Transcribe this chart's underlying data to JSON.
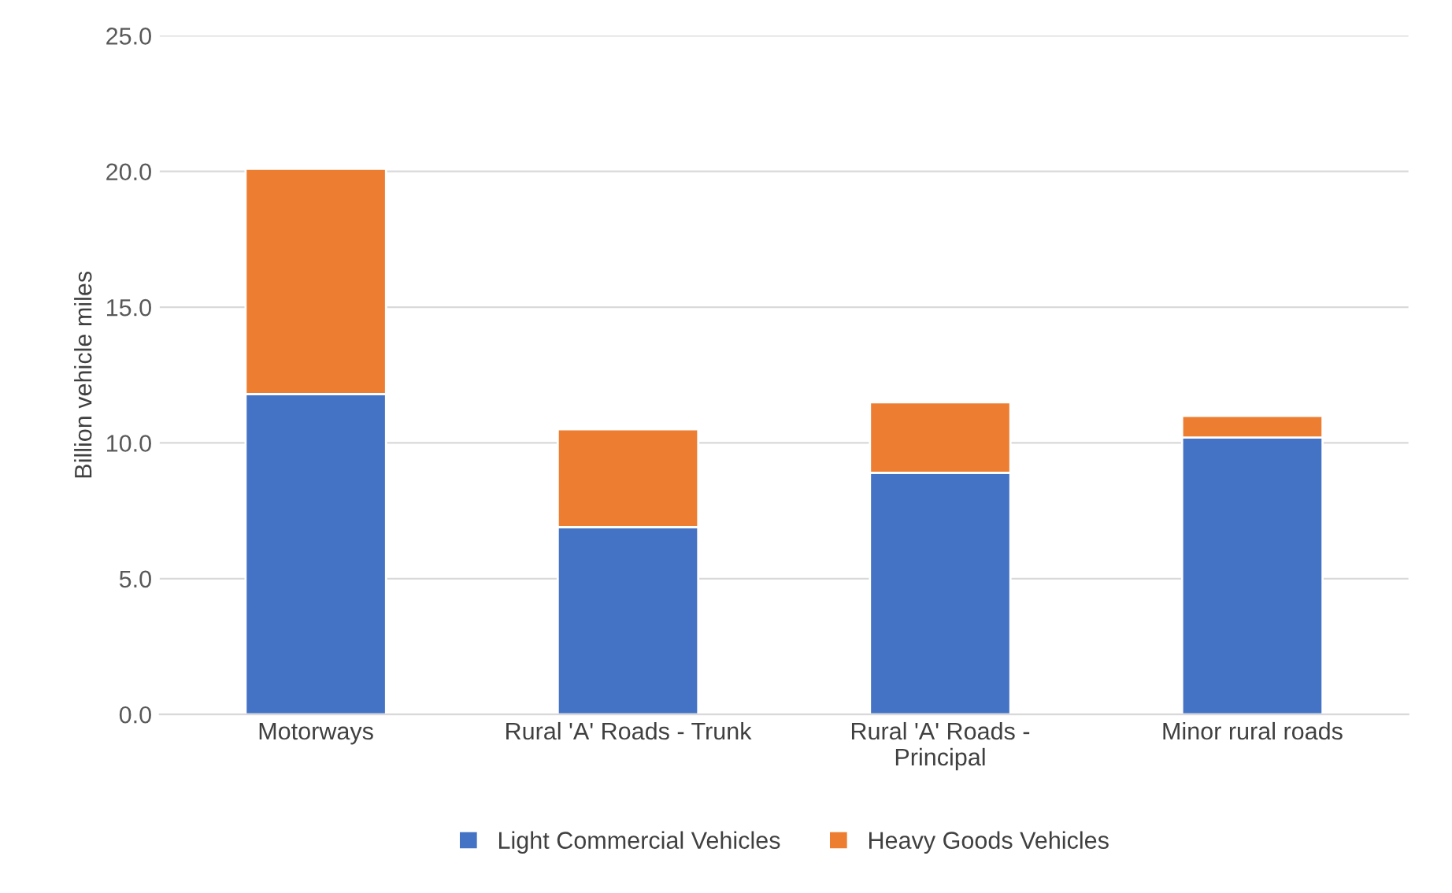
{
  "chart_data": {
    "type": "bar",
    "stacked": true,
    "ylabel": "Billion vehicle miles",
    "categories": [
      "Motorways",
      "Rural 'A' Roads - Trunk",
      "Rural 'A' Roads - Principal",
      "Minor rural roads"
    ],
    "series": [
      {
        "name": "Light Commercial Vehicles",
        "color": "#4472c4",
        "values": [
          11.8,
          6.9,
          8.9,
          10.2
        ]
      },
      {
        "name": "Heavy Goods Vehicles",
        "color": "#ed7d31",
        "values": [
          8.3,
          3.6,
          2.6,
          0.8
        ]
      }
    ],
    "ylim": [
      0,
      25
    ],
    "yticks": [
      {
        "value": 0,
        "label": "0.0"
      },
      {
        "value": 5,
        "label": "5.0"
      },
      {
        "value": 10,
        "label": "10.0"
      },
      {
        "value": 15,
        "label": "15.0"
      },
      {
        "value": 20,
        "label": "20.0"
      },
      {
        "value": 25,
        "label": "25.0"
      }
    ],
    "grid": "y",
    "legend": "bottom"
  }
}
